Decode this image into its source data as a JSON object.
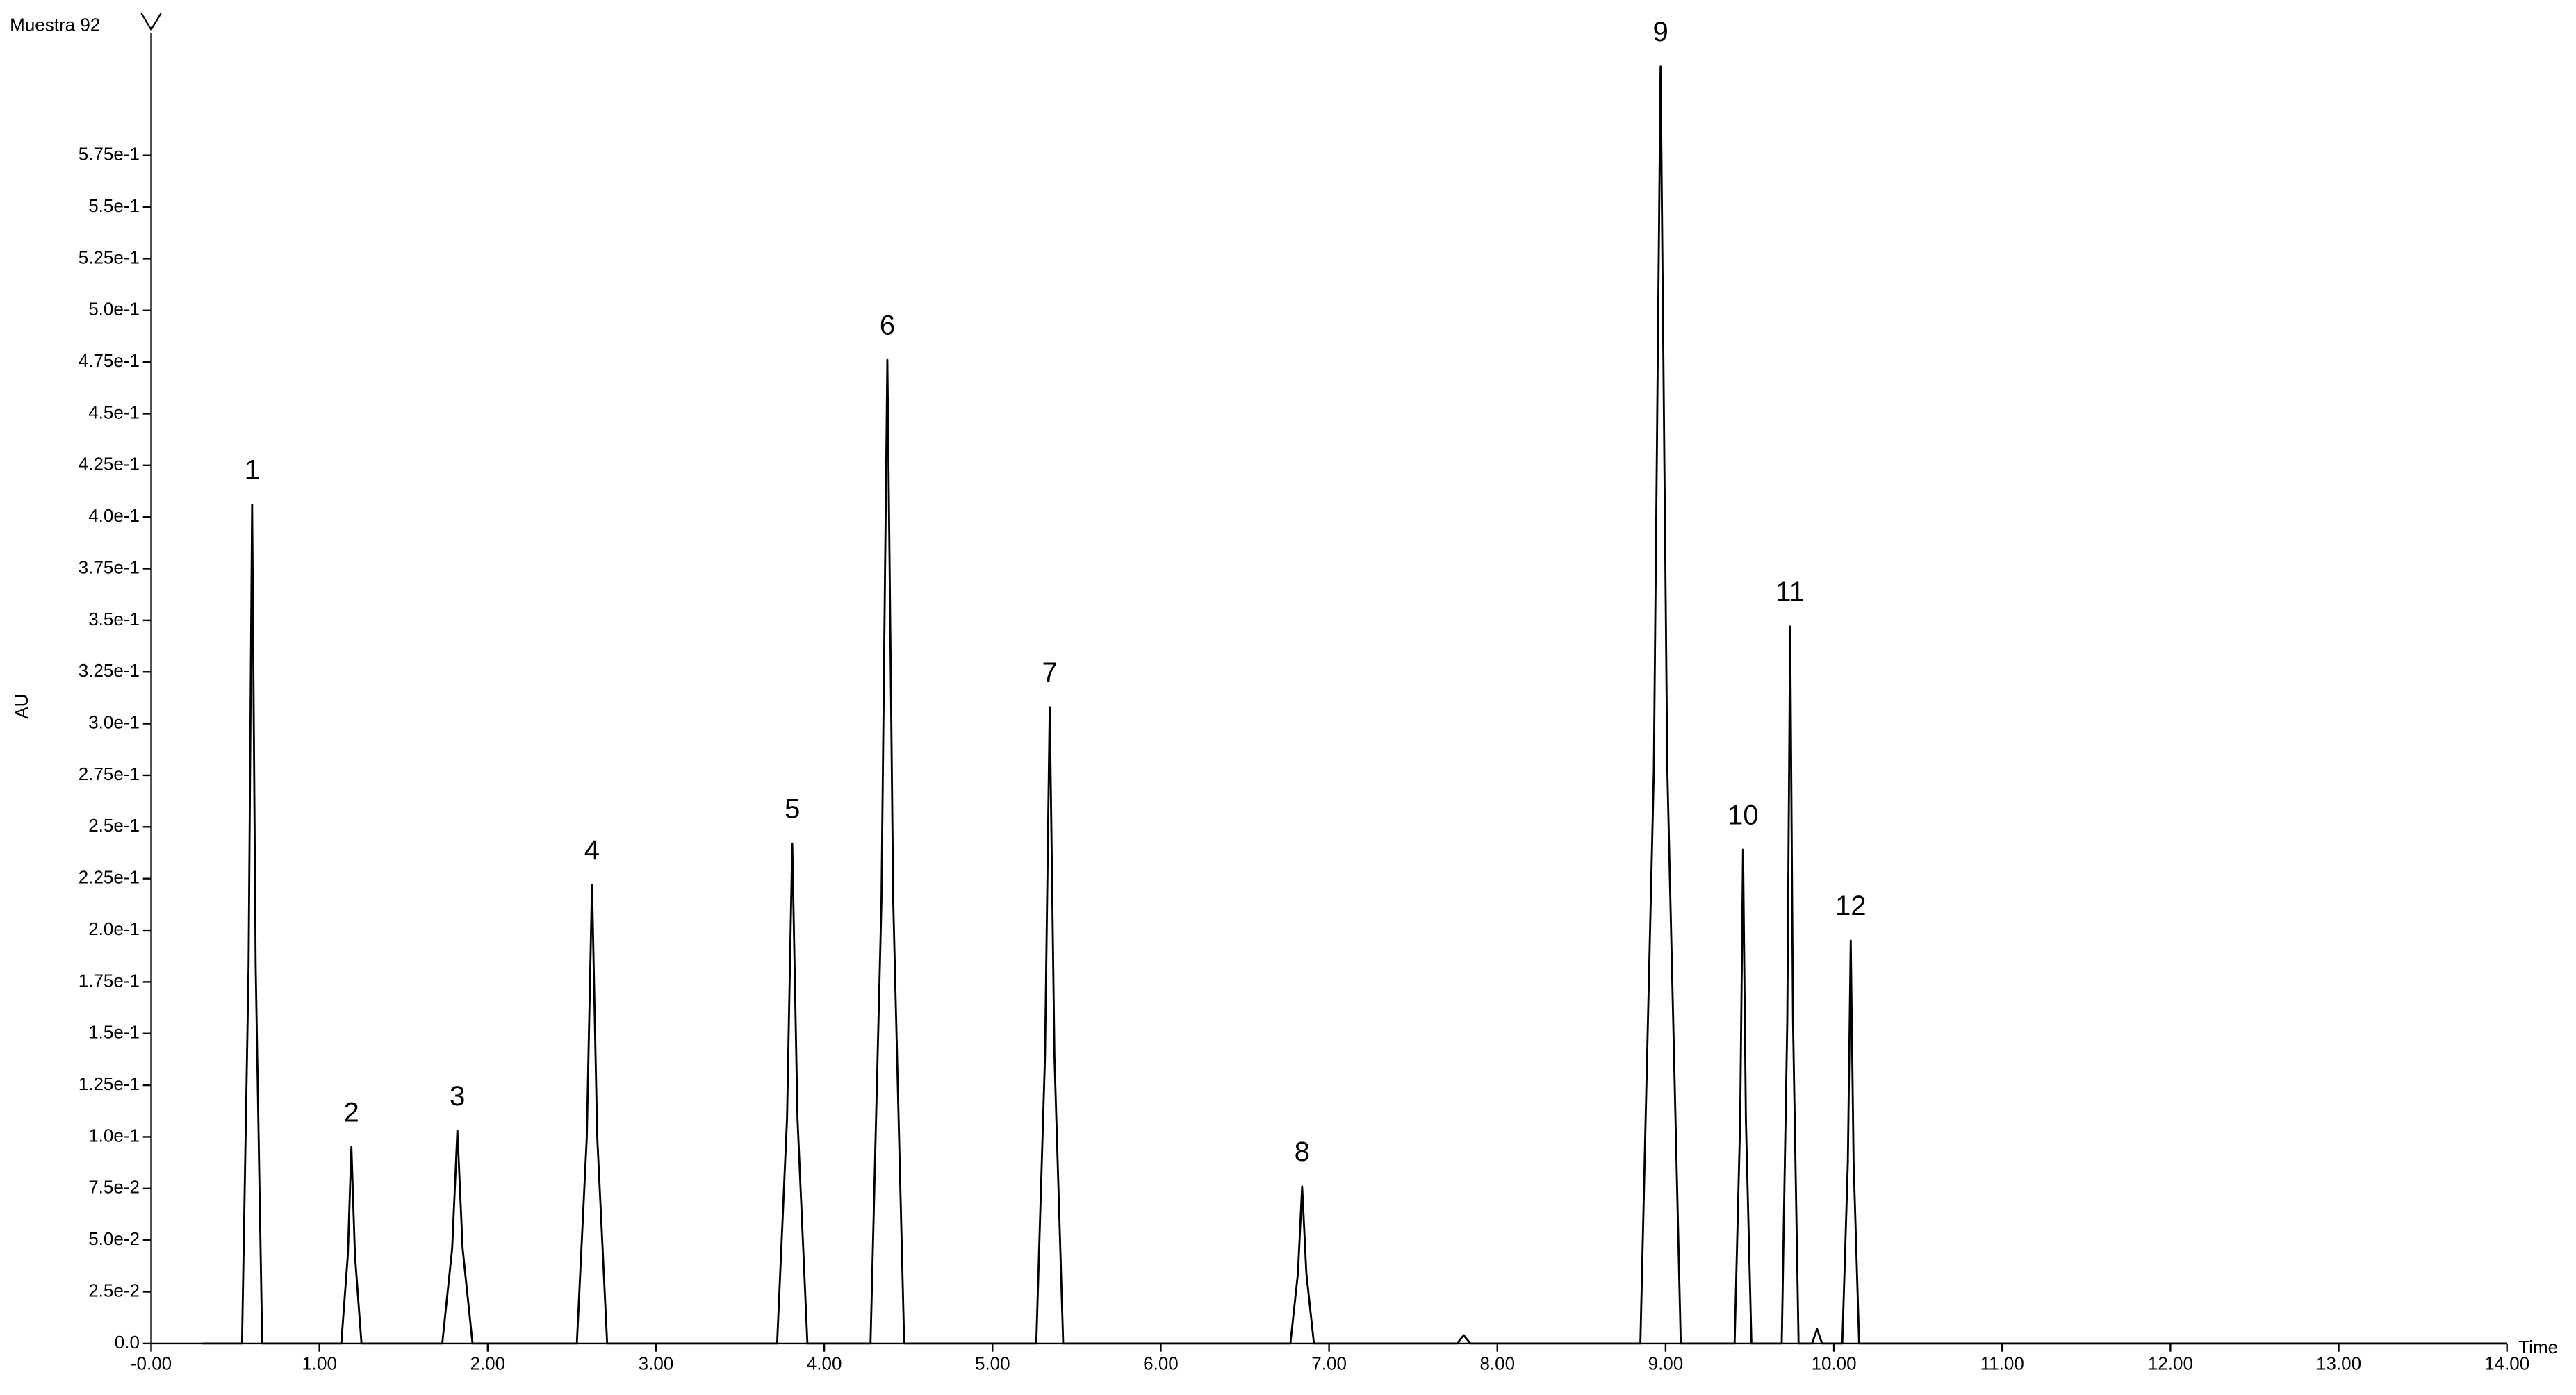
{
  "chart_data": {
    "type": "line",
    "title": "Muestra 92",
    "xlabel": "Time",
    "ylabel": "AU",
    "color": "#000000",
    "x": [
      0.3,
      0.54,
      0.579,
      0.6,
      0.621,
      0.66,
      1.13,
      1.169,
      1.19,
      1.211,
      1.25,
      1.73,
      1.789,
      1.82,
      1.851,
      1.91,
      2.53,
      2.589,
      2.62,
      2.651,
      2.71,
      3.72,
      3.779,
      3.81,
      3.841,
      3.9,
      4.275,
      4.34,
      4.375,
      4.41,
      4.475,
      5.26,
      5.312,
      5.34,
      5.368,
      5.42,
      6.77,
      6.815,
      6.84,
      6.865,
      6.91,
      7.76,
      7.8,
      7.84,
      8.85,
      8.93,
      8.97,
      9.01,
      9.09,
      9.41,
      9.443,
      9.46,
      9.477,
      9.51,
      9.69,
      9.723,
      9.74,
      9.757,
      9.79,
      9.87,
      9.9,
      9.93,
      10.05,
      10.083,
      10.1,
      10.117,
      10.15,
      14.0
    ],
    "values": [
      0,
      0,
      0.183,
      0.406,
      0.183,
      0,
      0,
      0.043,
      0.095,
      0.043,
      0,
      0,
      0.046,
      0.103,
      0.046,
      0,
      0,
      0.1,
      0.222,
      0.1,
      0,
      0,
      0.109,
      0.242,
      0.109,
      0,
      0,
      0.214,
      0.476,
      0.214,
      0,
      0,
      0.139,
      0.308,
      0.139,
      0,
      0,
      0.034,
      0.076,
      0.034,
      0,
      0,
      0.004,
      0,
      0,
      0.278,
      0.618,
      0.278,
      0,
      0,
      0.108,
      0.239,
      0.108,
      0,
      0,
      0.156,
      0.347,
      0.156,
      0,
      0,
      0.007,
      0,
      0,
      0.088,
      0.195,
      0.088,
      0,
      0
    ],
    "annotations": [
      {
        "text": "1",
        "x": 0.6,
        "y": 0.406
      },
      {
        "text": "2",
        "x": 1.19,
        "y": 0.095
      },
      {
        "text": "3",
        "x": 1.82,
        "y": 0.103
      },
      {
        "text": "4",
        "x": 2.62,
        "y": 0.222
      },
      {
        "text": "5",
        "x": 3.81,
        "y": 0.242
      },
      {
        "text": "6",
        "x": 4.375,
        "y": 0.476
      },
      {
        "text": "7",
        "x": 5.34,
        "y": 0.308
      },
      {
        "text": "8",
        "x": 6.84,
        "y": 0.076
      },
      {
        "text": "9",
        "x": 8.97,
        "y": 0.618
      },
      {
        "text": "10",
        "x": 9.46,
        "y": 0.239
      },
      {
        "text": "11",
        "x": 9.74,
        "y": 0.347
      },
      {
        "text": "12",
        "x": 10.1,
        "y": 0.195
      }
    ],
    "xlim": [
      0,
      14
    ],
    "xticks": [
      {
        "value": 0,
        "label": "-0.00"
      },
      {
        "value": 1,
        "label": "1.00"
      },
      {
        "value": 2,
        "label": "2.00"
      },
      {
        "value": 3,
        "label": "3.00"
      },
      {
        "value": 4,
        "label": "4.00"
      },
      {
        "value": 5,
        "label": "5.00"
      },
      {
        "value": 6,
        "label": "6.00"
      },
      {
        "value": 7,
        "label": "7.00"
      },
      {
        "value": 8,
        "label": "8.00"
      },
      {
        "value": 9,
        "label": "9.00"
      },
      {
        "value": 10,
        "label": "10.00"
      },
      {
        "value": 11,
        "label": "11.00"
      },
      {
        "value": 12,
        "label": "12.00"
      },
      {
        "value": 13,
        "label": "13.00"
      },
      {
        "value": 14,
        "label": "14.00"
      }
    ],
    "ylim": [
      0,
      0.62
    ],
    "yticks": [
      {
        "value": 0,
        "label": "0.0"
      },
      {
        "value": 0.025,
        "label": "2.5e-2"
      },
      {
        "value": 0.05,
        "label": "5.0e-2"
      },
      {
        "value": 0.075,
        "label": "7.5e-2"
      },
      {
        "value": 0.1,
        "label": "1.0e-1"
      },
      {
        "value": 0.125,
        "label": "1.25e-1"
      },
      {
        "value": 0.15,
        "label": "1.5e-1"
      },
      {
        "value": 0.175,
        "label": "1.75e-1"
      },
      {
        "value": 0.2,
        "label": "2.0e-1"
      },
      {
        "value": 0.225,
        "label": "2.25e-1"
      },
      {
        "value": 0.25,
        "label": "2.5e-1"
      },
      {
        "value": 0.275,
        "label": "2.75e-1"
      },
      {
        "value": 0.3,
        "label": "3.0e-1"
      },
      {
        "value": 0.325,
        "label": "3.25e-1"
      },
      {
        "value": 0.35,
        "label": "3.5e-1"
      },
      {
        "value": 0.375,
        "label": "3.75e-1"
      },
      {
        "value": 0.4,
        "label": "4.0e-1"
      },
      {
        "value": 0.425,
        "label": "4.25e-1"
      },
      {
        "value": 0.45,
        "label": "4.5e-1"
      },
      {
        "value": 0.475,
        "label": "4.75e-1"
      },
      {
        "value": 0.5,
        "label": "5.0e-1"
      },
      {
        "value": 0.525,
        "label": "5.25e-1"
      },
      {
        "value": 0.55,
        "label": "5.5e-1"
      },
      {
        "value": 0.575,
        "label": "5.75e-1"
      }
    ]
  }
}
